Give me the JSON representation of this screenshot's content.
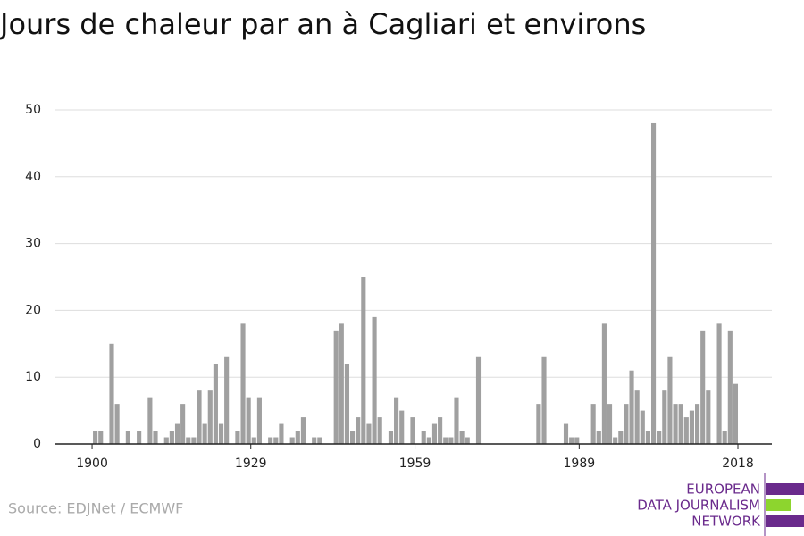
{
  "chart_data": {
    "type": "bar",
    "title": "Jours de chaleur par an à Cagliari et environs",
    "source": "Source: EDJNet / ECMWF",
    "logo": [
      "EUROPEAN",
      "DATA JOURNALISM",
      "NETWORK"
    ],
    "color": "#a0a0a0",
    "x": [
      1900,
      1901,
      1903,
      1904,
      1906,
      1908,
      1910,
      1911,
      1913,
      1914,
      1915,
      1916,
      1917,
      1918,
      1919,
      1920,
      1921,
      1922,
      1923,
      1924,
      1926,
      1927,
      1928,
      1929,
      1930,
      1932,
      1933,
      1934,
      1936,
      1937,
      1938,
      1940,
      1941,
      1944,
      1945,
      1946,
      1947,
      1948,
      1949,
      1950,
      1951,
      1952,
      1954,
      1955,
      1956,
      1958,
      1960,
      1961,
      1962,
      1963,
      1964,
      1965,
      1966,
      1967,
      1968,
      1970,
      1981,
      1982,
      1986,
      1987,
      1988,
      1991,
      1992,
      1993,
      1994,
      1995,
      1996,
      1997,
      1998,
      1999,
      2000,
      2001,
      2002,
      2003,
      2004,
      2005,
      2006,
      2007,
      2008,
      2009,
      2010,
      2011,
      2012,
      2014,
      2015,
      2016,
      2017
    ],
    "values": [
      2,
      2,
      15,
      6,
      2,
      2,
      7,
      2,
      1,
      2,
      3,
      6,
      1,
      1,
      8,
      3,
      8,
      12,
      3,
      13,
      2,
      18,
      7,
      1,
      7,
      1,
      1,
      3,
      1,
      2,
      4,
      1,
      1,
      17,
      18,
      12,
      2,
      4,
      25,
      3,
      19,
      4,
      2,
      7,
      5,
      4,
      2,
      1,
      3,
      4,
      1,
      1,
      7,
      2,
      1,
      13,
      6,
      13,
      3,
      1,
      1,
      6,
      2,
      18,
      6,
      1,
      2,
      6,
      11,
      8,
      5,
      2,
      48,
      2,
      8,
      13,
      6,
      6,
      4,
      5,
      6,
      17,
      8,
      18,
      2,
      17,
      9
    ],
    "xlim": [
      1893.3,
      2024.2
    ],
    "xticks": [
      1900,
      1929,
      1959,
      1989,
      2018
    ],
    "ylim": [
      0,
      50
    ],
    "yticks": [
      0,
      10,
      20,
      30,
      40,
      50
    ],
    "grid": true
  }
}
